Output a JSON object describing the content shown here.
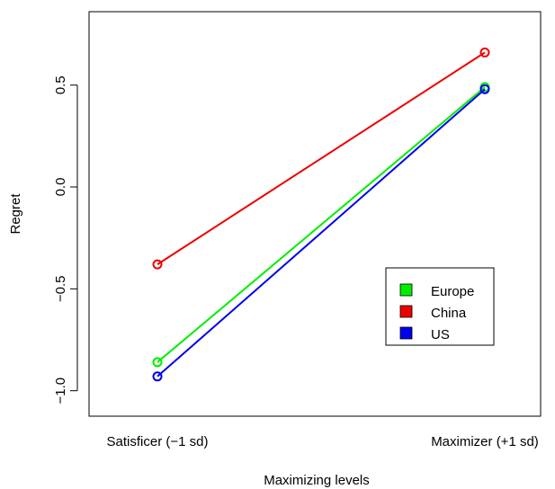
{
  "chart_data": {
    "type": "line",
    "title": "",
    "xlabel": "Maximizing levels",
    "ylabel": "Regret",
    "categories": [
      "Satisficer (−1 sd)",
      "Maximizer (+1 sd)"
    ],
    "yticks": [
      "−1.0",
      "−0.5",
      "0.0",
      "0.5"
    ],
    "ytick_values": [
      -1.0,
      -0.5,
      0.0,
      0.5
    ],
    "ylim": [
      -1.1,
      0.85
    ],
    "grid": false,
    "legend_position": "bottom-right",
    "series": [
      {
        "name": "Europe",
        "color": "#00ee00",
        "values": [
          -0.86,
          0.49
        ]
      },
      {
        "name": "China",
        "color": "#ee0000",
        "values": [
          -0.38,
          0.66
        ]
      },
      {
        "name": "US",
        "color": "#0000ee",
        "values": [
          -0.93,
          0.48
        ]
      }
    ]
  }
}
